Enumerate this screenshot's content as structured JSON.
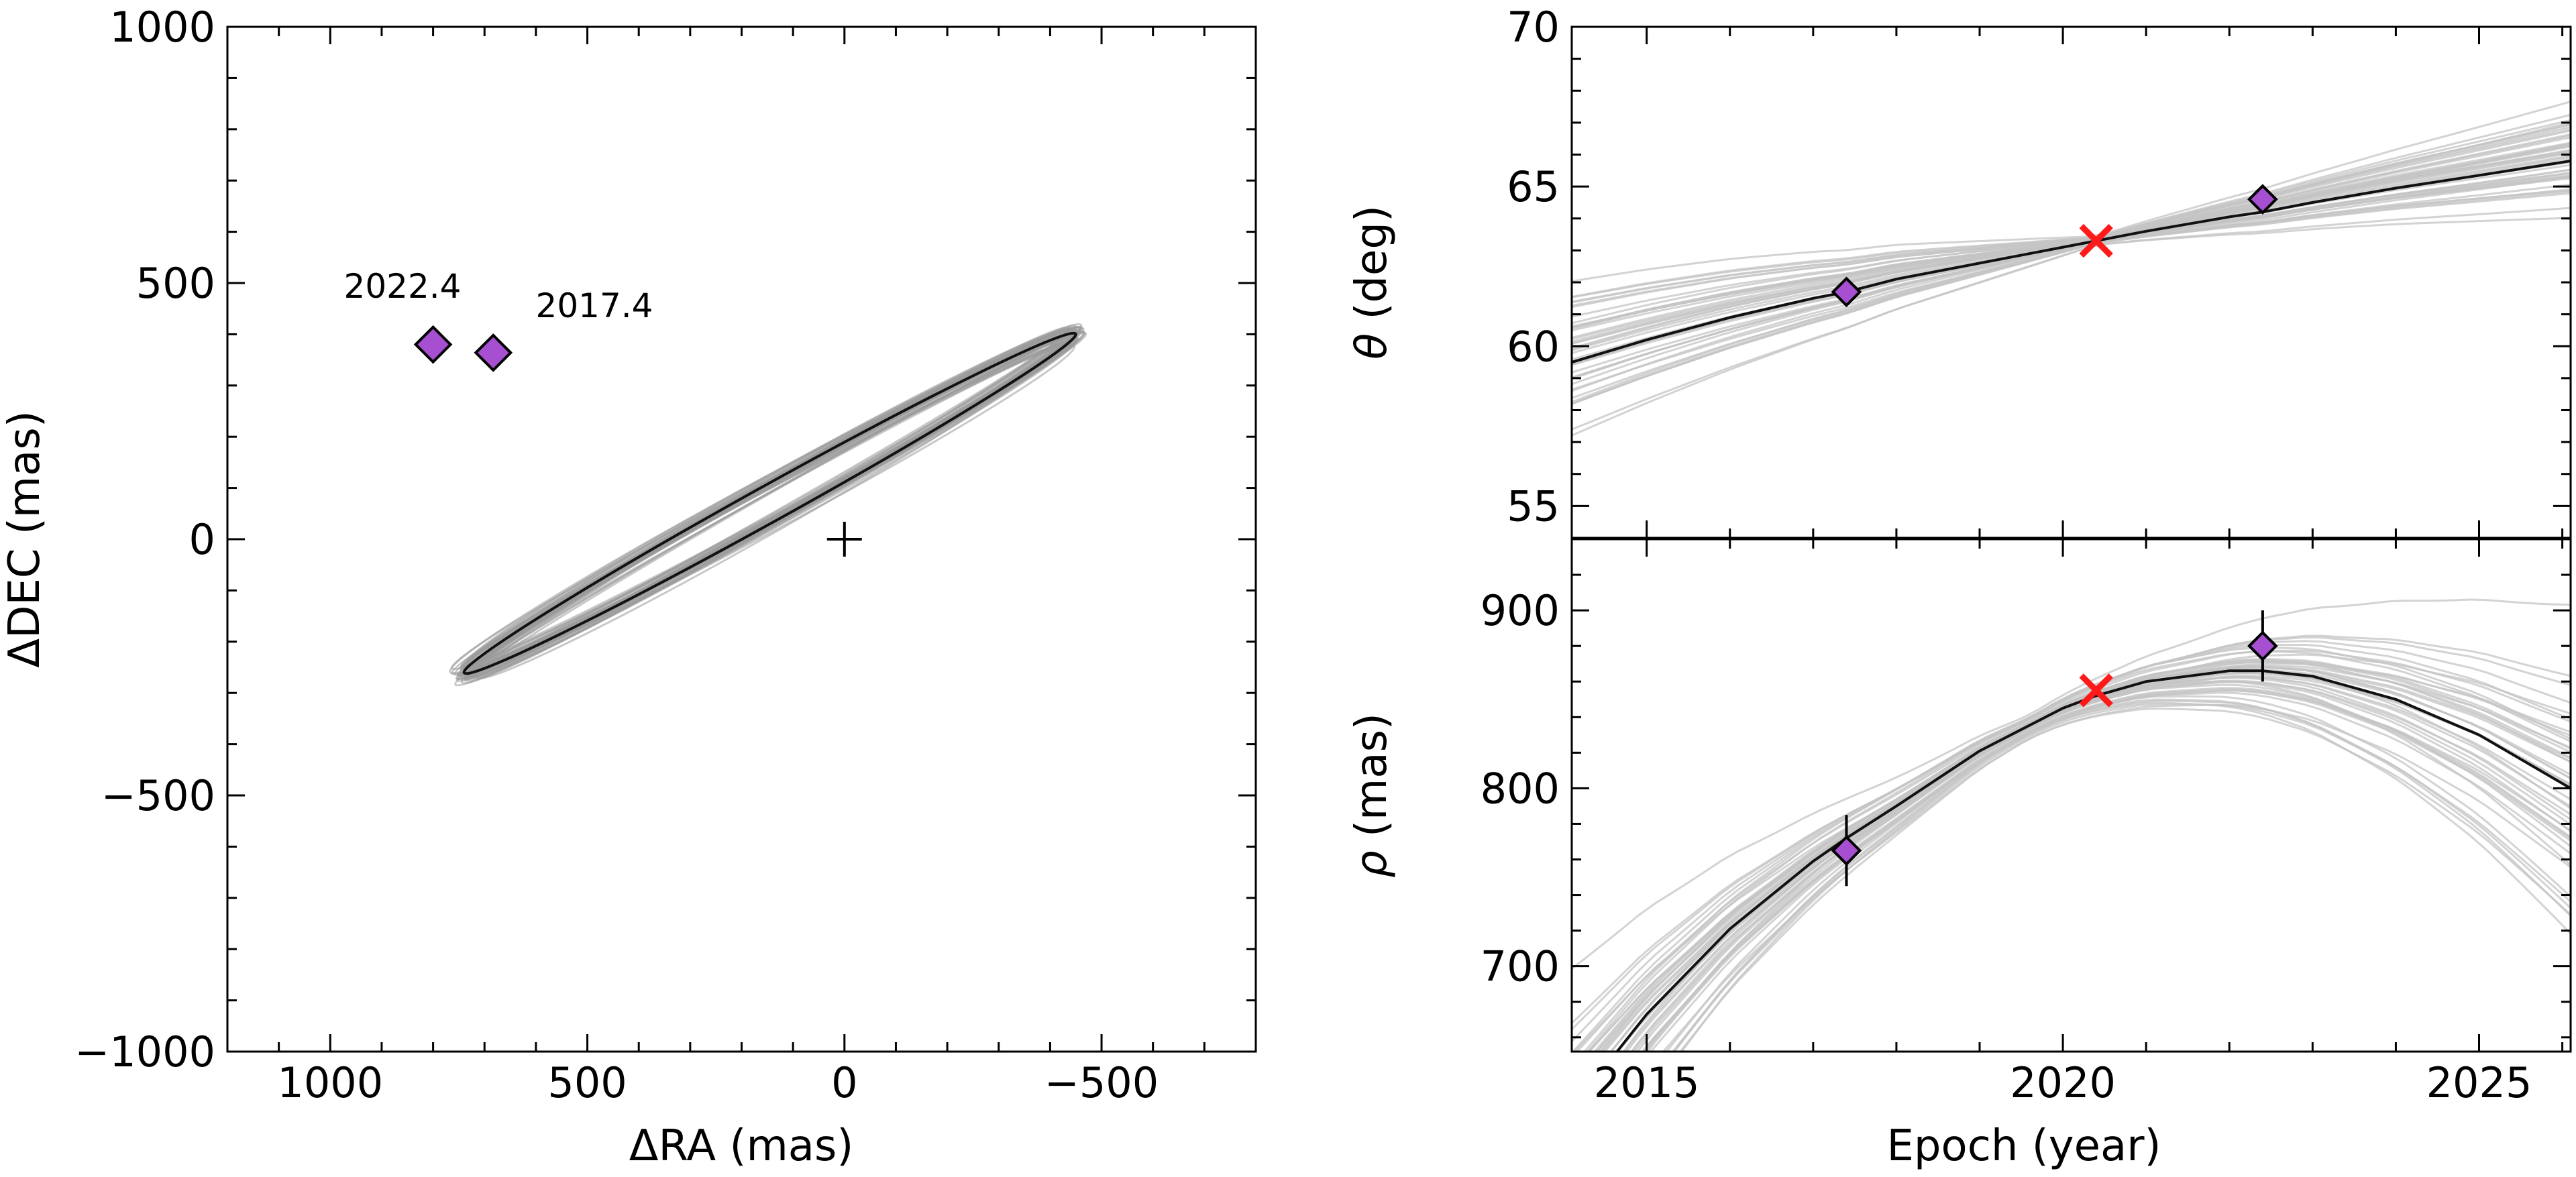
{
  "chart_data": [
    {
      "id": "sky",
      "type": "scatter",
      "xlabel": "ΔRA (mas)",
      "ylabel": "ΔDEC (mas)",
      "xlim": [
        1200,
        -800
      ],
      "ylim": [
        -1000,
        1000
      ],
      "x_ticks": [
        1000,
        500,
        0,
        -500
      ],
      "x_tick_labels": [
        "1000",
        "500",
        "0",
        "−500"
      ],
      "y_ticks": [
        1000,
        500,
        0,
        -500,
        -1000
      ],
      "y_tick_labels": [
        "1000",
        "500",
        "0",
        "−500",
        "−1000"
      ],
      "best_orbit": {
        "center": [
          145,
          70
        ],
        "semi_major": 680,
        "semi_minor": 35,
        "angle_deg": 151,
        "color": "#111111"
      },
      "sample_orbits_color": "#9a9a9a",
      "sample_orbit_count": 40,
      "primary_star": {
        "x": 0,
        "y": 0,
        "marker": "plus"
      },
      "points": [
        {
          "epoch": 2017.4,
          "x": 683,
          "y": 364,
          "label": "2017.4"
        },
        {
          "epoch": 2022.4,
          "x": 800,
          "y": 380,
          "label": "2022.4"
        }
      ],
      "point_color": "#a64fd1"
    },
    {
      "id": "theta",
      "type": "line",
      "xlabel": "",
      "ylabel": "θ (deg)",
      "ylabel_symbol": "θ",
      "ylabel_unit": " (deg)",
      "xlim": [
        2014.1,
        2026.1
      ],
      "ylim": [
        54,
        70
      ],
      "y_ticks": [
        55,
        60,
        65,
        70
      ],
      "y_tick_labels": [
        "55",
        "60",
        "65",
        "70"
      ],
      "best_fit": {
        "x": [
          2014.1,
          2015,
          2016,
          2017,
          2017.4,
          2018,
          2019,
          2020,
          2020.4,
          2021,
          2022,
          2022.4,
          2023,
          2024,
          2025,
          2026.1
        ],
        "y": [
          59.5,
          60.2,
          60.9,
          61.5,
          61.7,
          62.1,
          62.6,
          63.1,
          63.3,
          63.6,
          64.05,
          64.2,
          64.5,
          64.95,
          65.35,
          65.8
        ]
      },
      "sample_curve_count": 45,
      "sample_color": "#c4c4c4",
      "measurements": [
        {
          "epoch": 2017.4,
          "value": 61.7,
          "err": 0.3
        },
        {
          "epoch": 2022.4,
          "value": 64.6,
          "err": 0.3
        }
      ],
      "cross_point": {
        "epoch": 2020.4,
        "value": 63.3,
        "color": "#ff1a1a"
      },
      "point_color": "#a64fd1"
    },
    {
      "id": "rho",
      "type": "line",
      "xlabel": "Epoch (year)",
      "ylabel": "ρ (mas)",
      "ylabel_symbol": "ρ",
      "ylabel_unit": " (mas)",
      "xlim": [
        2014.1,
        2026.1
      ],
      "ylim": [
        652,
        940
      ],
      "x_ticks": [
        2015,
        2020,
        2025
      ],
      "x_tick_labels": [
        "2015",
        "2020",
        "2025"
      ],
      "y_ticks": [
        700,
        800,
        900
      ],
      "y_tick_labels": [
        "700",
        "800",
        "900"
      ],
      "best_fit": {
        "x": [
          2014.1,
          2015,
          2016,
          2017,
          2017.4,
          2018,
          2019,
          2020,
          2020.4,
          2021,
          2022,
          2022.4,
          2023,
          2024,
          2025,
          2026.1
        ],
        "y": [
          620,
          673,
          721,
          759,
          772,
          790,
          821,
          845,
          852,
          860,
          866,
          866,
          863,
          850,
          830,
          800
        ]
      },
      "sample_curve_count": 45,
      "sample_color": "#c4c4c4",
      "measurements": [
        {
          "epoch": 2017.4,
          "value": 765,
          "err": 20
        },
        {
          "epoch": 2022.4,
          "value": 880,
          "err": 20
        }
      ],
      "cross_point": {
        "epoch": 2020.4,
        "value": 855,
        "color": "#ff1a1a"
      },
      "point_color": "#a64fd1"
    }
  ]
}
